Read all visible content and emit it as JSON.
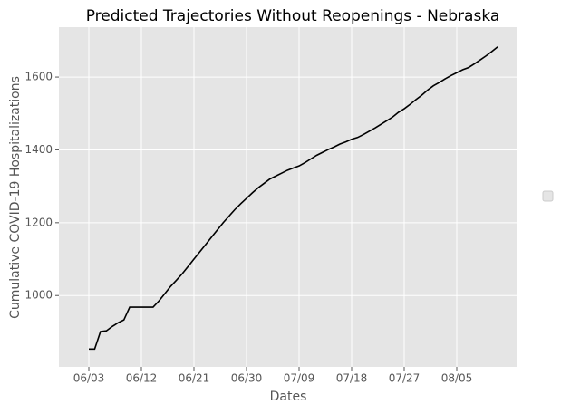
{
  "chart_data": {
    "type": "line",
    "title": "Predicted Trajectories Without Reopenings - Nebraska",
    "xlabel": "Dates",
    "ylabel": "Cumulative COVID-19 Hospitalizations",
    "x": [
      "06/03",
      "06/04",
      "06/05",
      "06/06",
      "06/07",
      "06/08",
      "06/09",
      "06/10",
      "06/11",
      "06/12",
      "06/13",
      "06/14",
      "06/15",
      "06/16",
      "06/17",
      "06/18",
      "06/19",
      "06/20",
      "06/21",
      "06/22",
      "06/23",
      "06/24",
      "06/25",
      "06/26",
      "06/27",
      "06/28",
      "06/29",
      "06/30",
      "07/01",
      "07/02",
      "07/03",
      "07/04",
      "07/05",
      "07/06",
      "07/07",
      "07/08",
      "07/09",
      "07/10",
      "07/11",
      "07/12",
      "07/13",
      "07/14",
      "07/15",
      "07/16",
      "07/17",
      "07/18",
      "07/19",
      "07/20",
      "07/21",
      "07/22",
      "07/23",
      "07/24",
      "07/25",
      "07/26",
      "07/27",
      "07/28",
      "07/29",
      "07/30",
      "07/31",
      "08/01",
      "08/02",
      "08/03",
      "08/04",
      "08/05",
      "08/06",
      "08/07",
      "08/08",
      "08/09",
      "08/10",
      "08/11",
      "08/12"
    ],
    "xticks": [
      "06/03",
      "06/12",
      "06/21",
      "06/30",
      "07/09",
      "07/18",
      "07/27",
      "08/05"
    ],
    "series": [
      {
        "color": "#000000",
        "values": [
          853,
          853,
          901,
          903,
          915,
          925,
          933,
          968,
          968,
          968,
          968,
          968,
          985,
          1005,
          1025,
          1042,
          1060,
          1080,
          1100,
          1120,
          1140,
          1160,
          1180,
          1200,
          1218,
          1236,
          1252,
          1267,
          1282,
          1296,
          1308,
          1320,
          1328,
          1336,
          1344,
          1350,
          1356,
          1365,
          1375,
          1385,
          1393,
          1401,
          1408,
          1416,
          1422,
          1429,
          1434,
          1442,
          1451,
          1460,
          1470,
          1480,
          1490,
          1503,
          1513,
          1525,
          1538,
          1550,
          1564,
          1576,
          1585,
          1595,
          1604,
          1612,
          1620,
          1626,
          1636,
          1647,
          1658,
          1670,
          1683
        ]
      }
    ],
    "ylim": [
      804,
      1737
    ],
    "yticks": [
      1000,
      1200,
      1400,
      1600
    ],
    "grid": true
  }
}
